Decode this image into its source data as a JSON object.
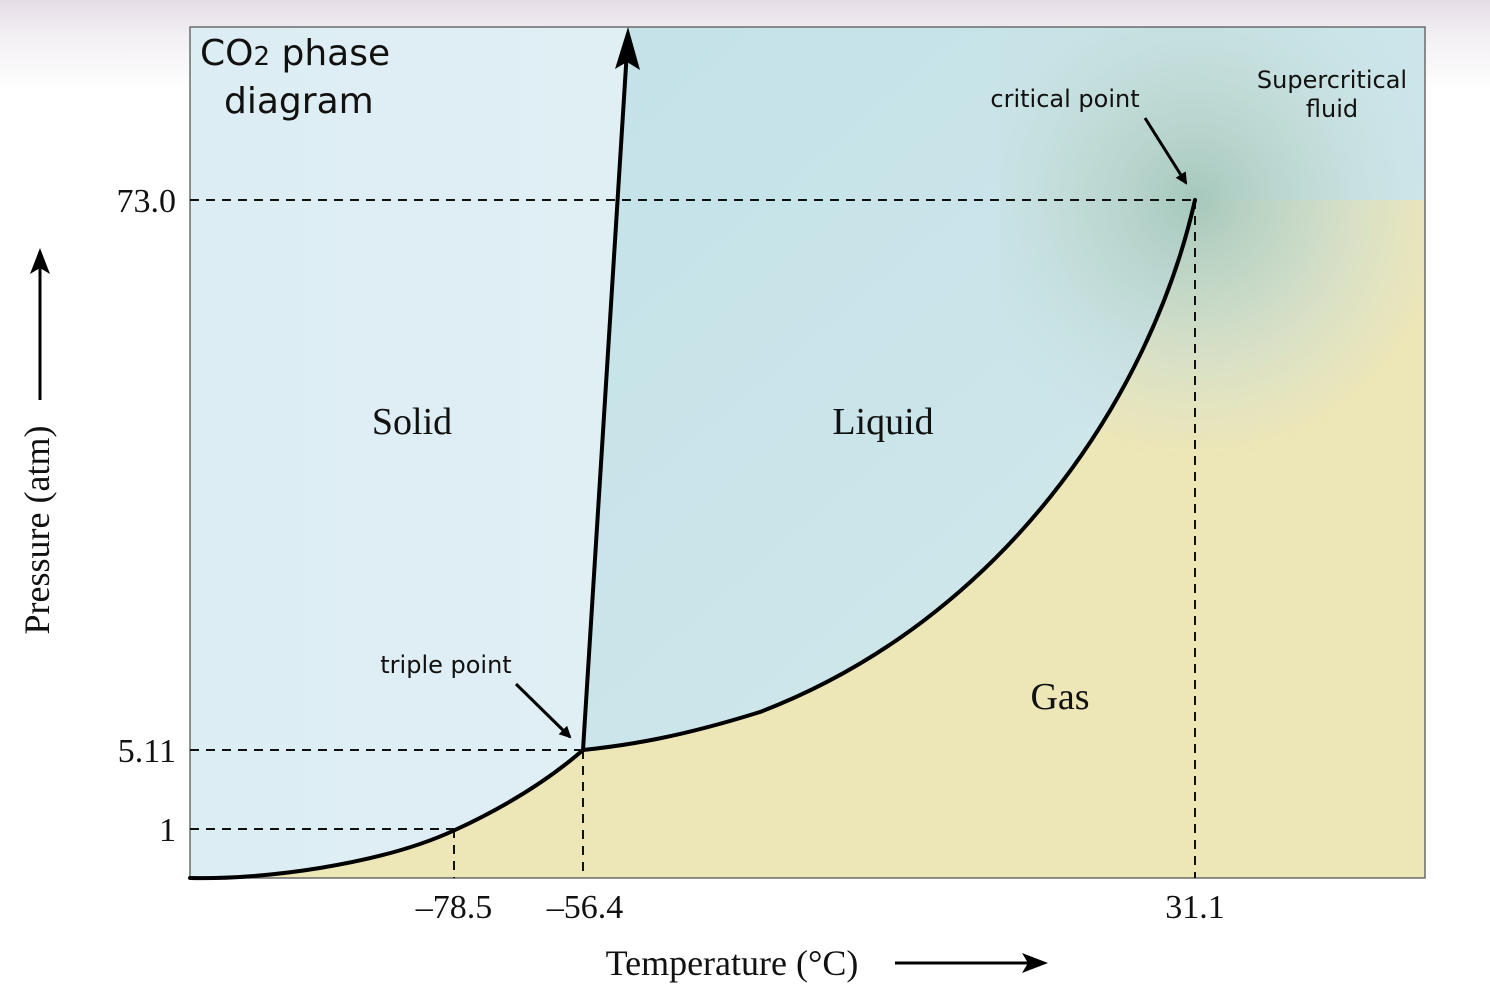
{
  "title": {
    "line1_prefix": "CO",
    "line1_sub": "2",
    "line1_suffix": " phase",
    "line2": "diagram"
  },
  "axes": {
    "x_label": "Temperature (°C)",
    "y_label": "Pressure (atm)",
    "x_ticks": [
      "–78.5",
      "–56.4",
      "31.1"
    ],
    "y_ticks": [
      "73.0",
      "5.11",
      "1"
    ]
  },
  "regions": {
    "solid": "Solid",
    "liquid": "Liquid",
    "gas": "Gas",
    "supercritical_line1": "Supercritical",
    "supercritical_line2": "fluid"
  },
  "annotations": {
    "triple_point": "triple point",
    "critical_point": "critical point"
  },
  "colors": {
    "solid_region": "#e4f1f6",
    "liquid_region": "#c9e4ea",
    "gas_region": "#ede6b6",
    "supercritical_region": "#b9d5cc",
    "curve": "#000000"
  }
}
